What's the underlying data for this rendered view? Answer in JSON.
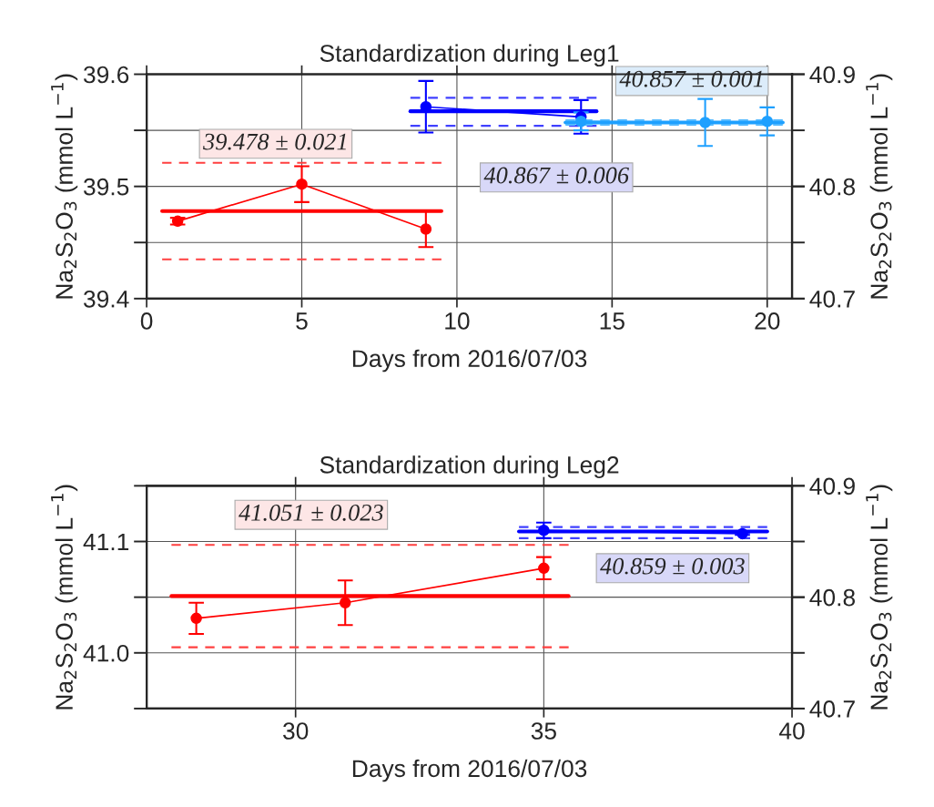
{
  "chart_data": [
    {
      "type": "line",
      "title": "Standardization during Leg1",
      "xlabel": "Days from 2016/07/03",
      "ylabel": "Na$_{2}$S$_{2}$O$_{3}$ (mmol L$^{−1}$)",
      "y2label": "Na$_{2}$S$_{2}$O$_{3}$ (mmol L$^{−1}$)",
      "xlim": [
        0,
        20.8
      ],
      "xticks": [
        0,
        5,
        10,
        15,
        20
      ],
      "ylim": [
        39.4,
        39.6
      ],
      "yticks": [
        39.4,
        {
          "value": 39.45,
          "label": null
        },
        39.5,
        {
          "value": 39.55,
          "label": null
        },
        39.6
      ],
      "y2lim": [
        40.7,
        40.9
      ],
      "y2ticks": [
        40.7,
        40.8,
        40.9
      ],
      "grid": true,
      "legend": false,
      "series": [
        {
          "color": "#ff0000",
          "x": [
            1,
            5,
            9
          ],
          "values": [
            39.469,
            39.502,
            39.462
          ],
          "errors": [
            0.003,
            0.016,
            0.016
          ],
          "marker": "circle",
          "line_style": "solid"
        },
        {
          "color": "#ff0000",
          "x": [
            0.5,
            9.5
          ],
          "values": [
            39.478,
            39.478
          ],
          "marker": "none",
          "line_style": "solid"
        },
        {
          "color": "#ff4040",
          "x": [
            0.5,
            9.5
          ],
          "values": [
            39.521,
            39.521
          ],
          "marker": "none",
          "line_style": "dashed"
        },
        {
          "color": "#ff4040",
          "x": [
            0.5,
            9.5
          ],
          "values": [
            39.435,
            39.435
          ],
          "marker": "none",
          "line_style": "dashed"
        },
        {
          "color": "#0000ff",
          "axis": "y2",
          "x": [
            9,
            14
          ],
          "values": [
            40.871,
            40.862
          ],
          "errors": [
            0.023,
            0.015
          ],
          "marker": "circle",
          "line_style": "solid"
        },
        {
          "color": "#0000ff",
          "axis": "y2",
          "x": [
            8.5,
            14.5
          ],
          "values": [
            40.867,
            40.867
          ],
          "marker": "none",
          "line_style": "solid"
        },
        {
          "color": "#4040ff",
          "axis": "y2",
          "x": [
            8.5,
            14.5
          ],
          "values": [
            40.879,
            40.879
          ],
          "marker": "none",
          "line_style": "dashed"
        },
        {
          "color": "#4040ff",
          "axis": "y2",
          "x": [
            8.5,
            14.5
          ],
          "values": [
            40.854,
            40.854
          ],
          "marker": "none",
          "line_style": "dashed"
        },
        {
          "color": "#1ea0ff",
          "axis": "y2",
          "x": [
            14,
            18,
            20
          ],
          "values": [
            40.858,
            40.857,
            40.858
          ],
          "errors": [
            0.008,
            0.021,
            0.0125
          ],
          "marker": "circle",
          "line_style": "solid"
        },
        {
          "color": "#1ea0ff",
          "axis": "y2",
          "x": [
            13.5,
            20.5
          ],
          "values": [
            40.857,
            40.857
          ],
          "marker": "none",
          "line_style": "solid"
        },
        {
          "color": "#50b8ff",
          "axis": "y2",
          "x": [
            13.5,
            20.5
          ],
          "values": [
            40.859,
            40.859
          ],
          "marker": "none",
          "line_style": "dashed"
        },
        {
          "color": "#50b8ff",
          "axis": "y2",
          "x": [
            13.5,
            20.5
          ],
          "values": [
            40.855,
            40.855
          ],
          "marker": "none",
          "line_style": "dashed"
        }
      ],
      "annotations": [
        "39.478 ± 0.021",
        "40.867 ± 0.006",
        "40.857 ± 0.001"
      ]
    },
    {
      "type": "line",
      "title": "Standardization during Leg2",
      "xlabel": "Days from 2016/07/03",
      "ylabel": "Na$_{2}$S$_{2}$O$_{3}$ (mmol L$^{−1}$)",
      "y2label": "Na$_{2}$S$_{2}$O$_{3}$ (mmol L$^{−1}$)",
      "xlim": [
        27,
        40
      ],
      "xticks": [
        30,
        35,
        40
      ],
      "ylim": [
        40.95,
        41.15
      ],
      "yticks": [
        {
          "value": 40.95,
          "label": null
        },
        {
          "value": 41.0,
          "label": "41.0"
        },
        {
          "value": 41.05,
          "label": null
        },
        41.1,
        {
          "value": 41.15,
          "label": null
        }
      ],
      "y2lim": [
        40.7,
        40.9
      ],
      "y2ticks": [
        40.7,
        40.8,
        40.9
      ],
      "grid": true,
      "legend": false,
      "series": [
        {
          "color": "#ff0000",
          "x": [
            28,
            31,
            35
          ],
          "values": [
            41.031,
            41.045,
            41.076
          ],
          "errors": [
            0.014,
            0.02,
            0.01
          ],
          "marker": "circle",
          "line_style": "solid"
        },
        {
          "color": "#ff0000",
          "x": [
            27.5,
            35.5
          ],
          "values": [
            41.051,
            41.051
          ],
          "marker": "none",
          "line_style": "solid"
        },
        {
          "color": "#ff4040",
          "x": [
            27.5,
            35.5
          ],
          "values": [
            41.097,
            41.097
          ],
          "marker": "none",
          "line_style": "dashed"
        },
        {
          "color": "#ff4040",
          "x": [
            27.5,
            35.5
          ],
          "values": [
            41.005,
            41.005
          ],
          "marker": "none",
          "line_style": "dashed"
        },
        {
          "color": "#0000ff",
          "axis": "y2",
          "x": [
            35,
            39
          ],
          "values": [
            40.86,
            40.857
          ],
          "errors": [
            0.007,
            0.001
          ],
          "marker": "circle",
          "line_style": "solid"
        },
        {
          "color": "#0000ff",
          "axis": "y2",
          "x": [
            34.5,
            39.5
          ],
          "values": [
            40.859,
            40.859
          ],
          "marker": "none",
          "line_style": "solid"
        },
        {
          "color": "#4040ff",
          "axis": "y2",
          "x": [
            34.5,
            39.5
          ],
          "values": [
            40.863,
            40.863
          ],
          "marker": "none",
          "line_style": "dashed"
        },
        {
          "color": "#4040ff",
          "axis": "y2",
          "x": [
            34.5,
            39.5
          ],
          "values": [
            40.853,
            40.853
          ],
          "marker": "none",
          "line_style": "dashed"
        }
      ],
      "annotations": [
        "41.051 ± 0.023",
        "40.859 ± 0.003"
      ]
    }
  ]
}
